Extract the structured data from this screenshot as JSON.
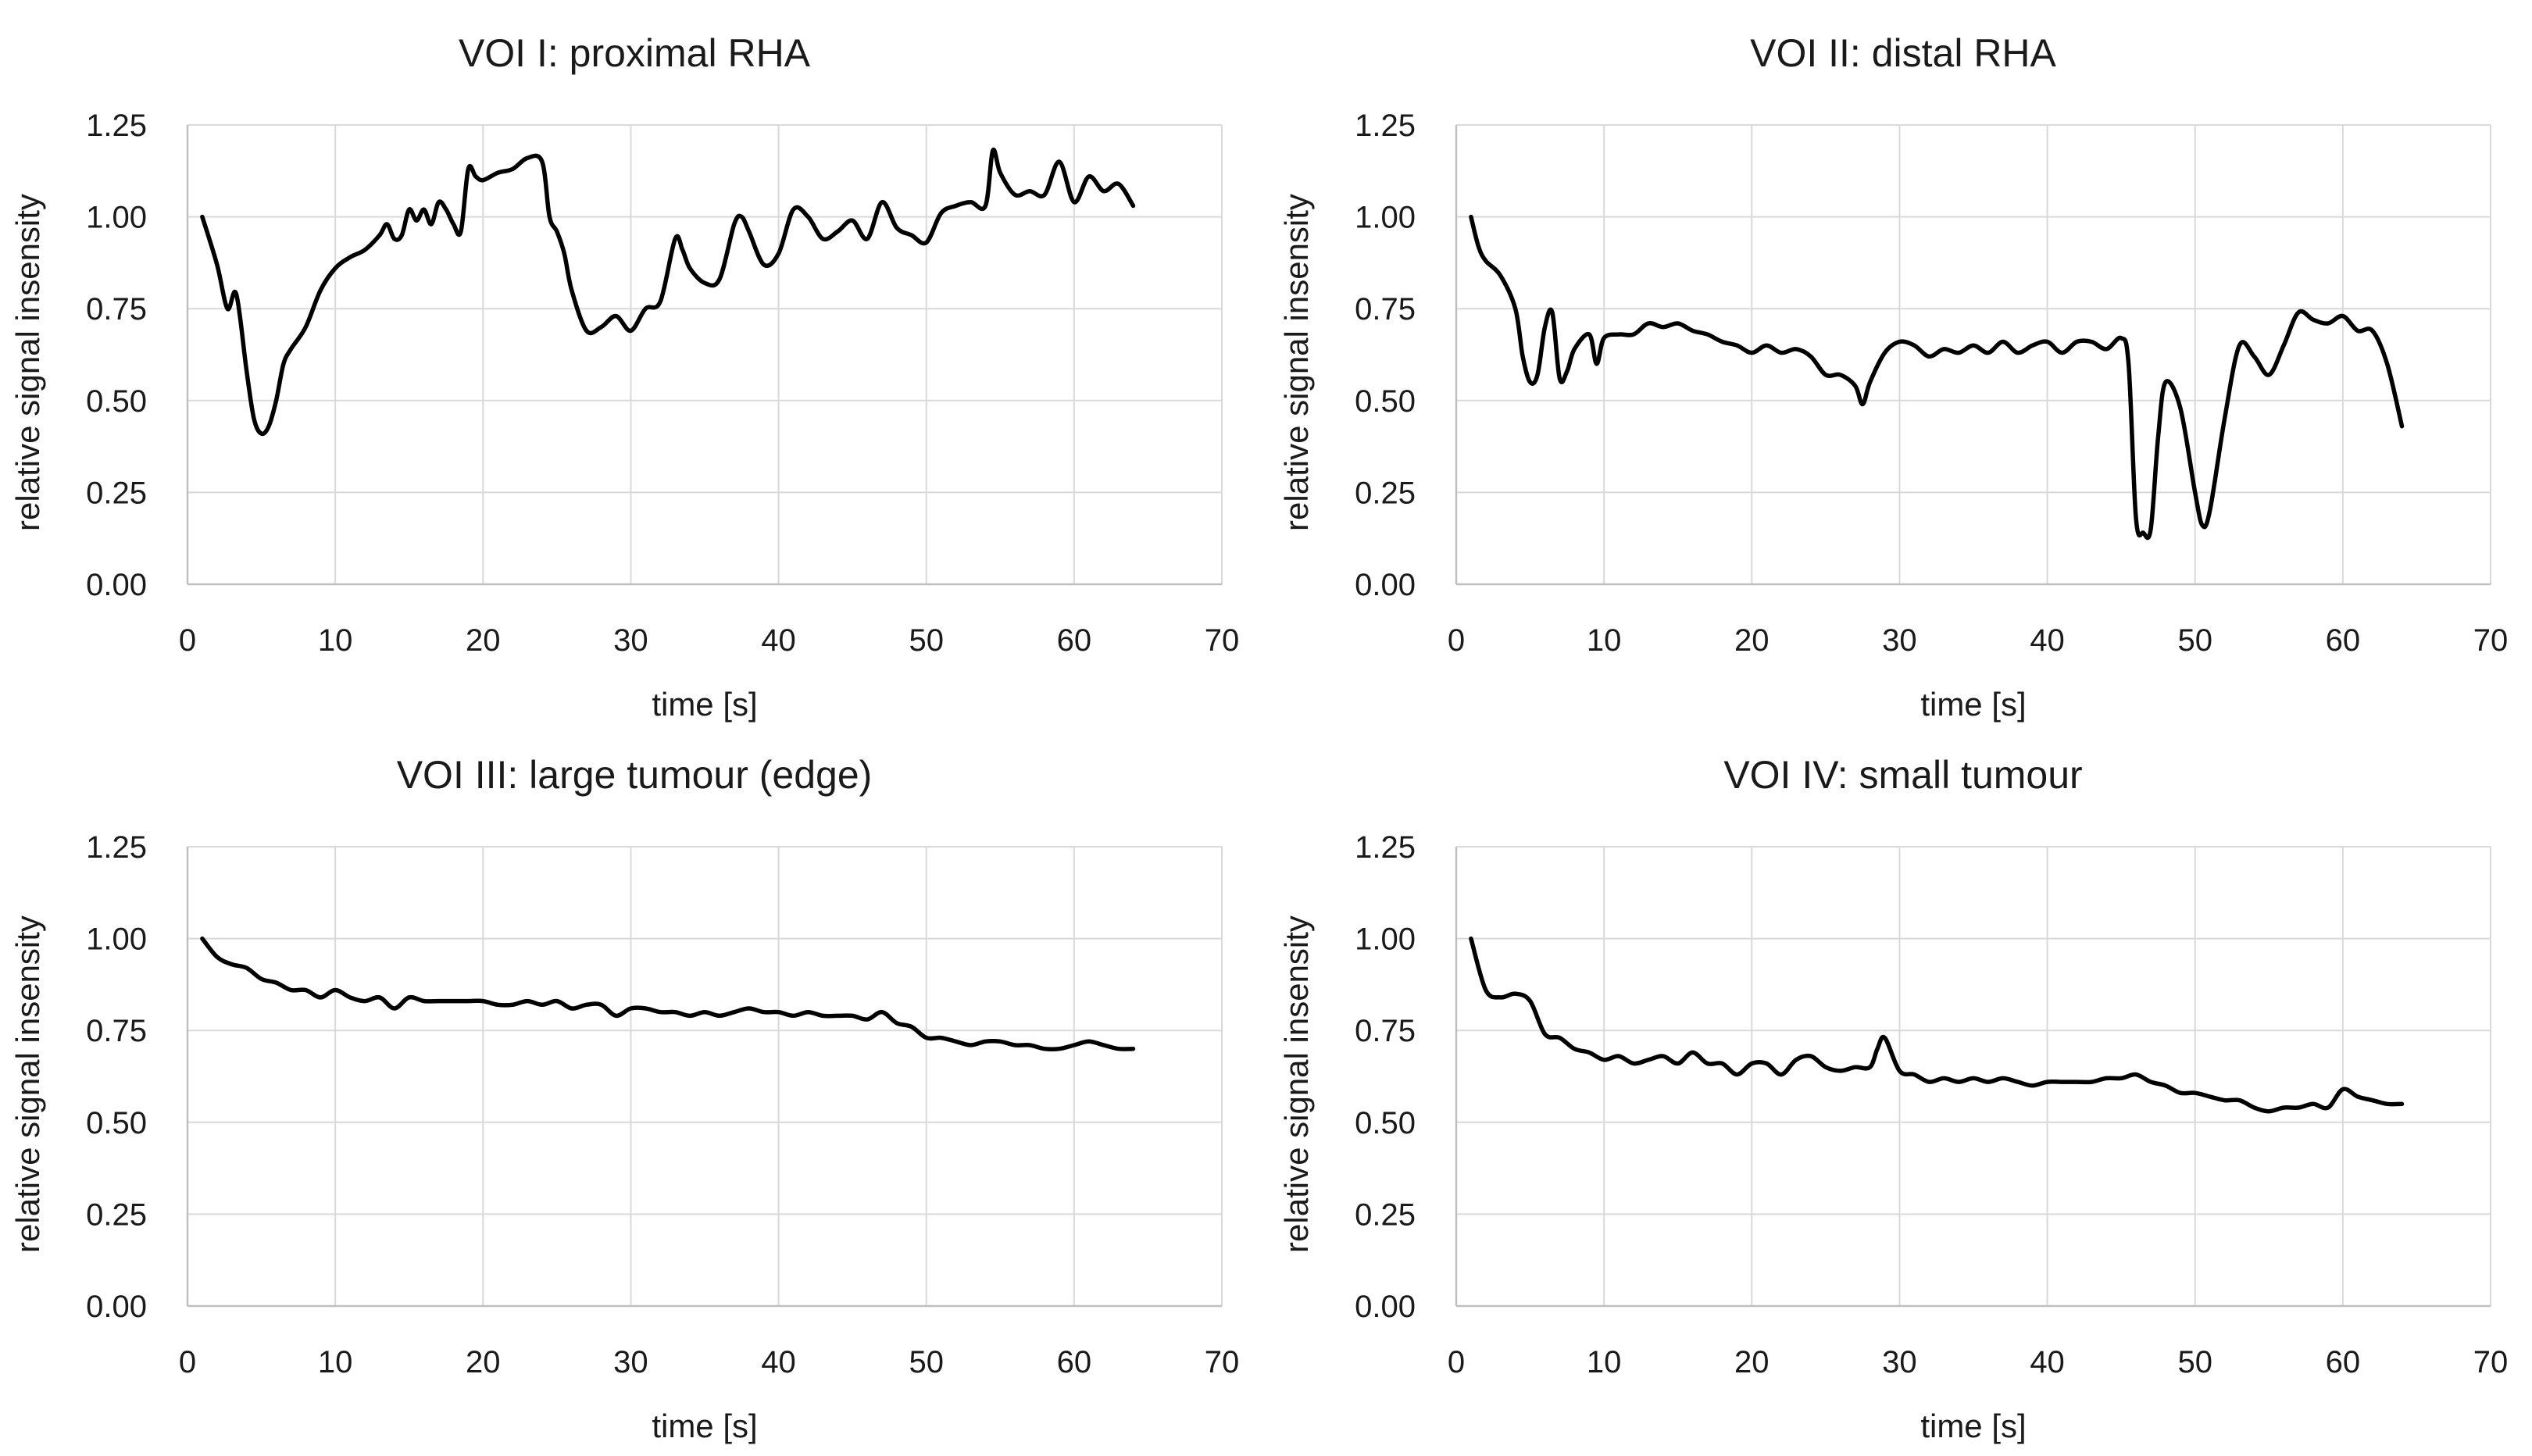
{
  "chart_data": [
    {
      "type": "line",
      "title": "VOI I: proximal RHA",
      "xlabel": "time [s]",
      "ylabel": "relative signal insensity",
      "xlim": [
        0,
        70
      ],
      "ylim": [
        0,
        1.25
      ],
      "xticks": [
        "0",
        "10",
        "20",
        "30",
        "40",
        "50",
        "60",
        "70"
      ],
      "yticks": [
        "0.00",
        "0.25",
        "0.50",
        "0.75",
        "1.00",
        "1.25"
      ],
      "grid": true,
      "series": [
        {
          "color": "#000000",
          "x": [
            1,
            2,
            2.7,
            3.3,
            4,
            4.5,
            5,
            5.5,
            6,
            6.5,
            7,
            8,
            9,
            10,
            11,
            12,
            13,
            13.5,
            14,
            14.5,
            15,
            15.5,
            16,
            16.5,
            17,
            17.5,
            18,
            18.5,
            19,
            19.5,
            20,
            21,
            22,
            23,
            24,
            24.5,
            25,
            25.5,
            26,
            27,
            28,
            29,
            30,
            31,
            32,
            33,
            33.5,
            34,
            35,
            36,
            37,
            37.5,
            38,
            39,
            40,
            41,
            42,
            43,
            44,
            45,
            46,
            47,
            48,
            49,
            50,
            51,
            52,
            53,
            54,
            54.5,
            55,
            56,
            57,
            58,
            59,
            60,
            61,
            62,
            63,
            64
          ],
          "y": [
            1.0,
            0.87,
            0.75,
            0.79,
            0.58,
            0.45,
            0.41,
            0.43,
            0.5,
            0.6,
            0.64,
            0.7,
            0.8,
            0.86,
            0.89,
            0.91,
            0.95,
            0.98,
            0.94,
            0.95,
            1.02,
            0.99,
            1.02,
            0.98,
            1.04,
            1.02,
            0.98,
            0.96,
            1.13,
            1.11,
            1.1,
            1.12,
            1.13,
            1.16,
            1.15,
            1.0,
            0.96,
            0.9,
            0.8,
            0.69,
            0.7,
            0.73,
            0.69,
            0.75,
            0.77,
            0.94,
            0.91,
            0.86,
            0.82,
            0.83,
            0.98,
            1.0,
            0.96,
            0.87,
            0.9,
            1.02,
            1.0,
            0.94,
            0.96,
            0.99,
            0.94,
            1.04,
            0.97,
            0.95,
            0.93,
            1.01,
            1.03,
            1.04,
            1.03,
            1.18,
            1.12,
            1.06,
            1.07,
            1.06,
            1.15,
            1.04,
            1.11,
            1.07,
            1.09,
            1.03
          ]
        }
      ]
    },
    {
      "type": "line",
      "title": "VOI II: distal RHA",
      "xlabel": "time [s]",
      "ylabel": "relative signal insensity",
      "xlim": [
        0,
        70
      ],
      "ylim": [
        0,
        1.25
      ],
      "xticks": [
        "0",
        "10",
        "20",
        "30",
        "40",
        "50",
        "60",
        "70"
      ],
      "yticks": [
        "0.00",
        "0.25",
        "0.50",
        "0.75",
        "1.00",
        "1.25"
      ],
      "grid": true,
      "series": [
        {
          "color": "#000000",
          "x": [
            1,
            1.5,
            2,
            3,
            4,
            4.5,
            5,
            5.5,
            6,
            6.5,
            7,
            7.5,
            8,
            9,
            9.5,
            10,
            11,
            12,
            13,
            14,
            15,
            16,
            17,
            18,
            19,
            20,
            21,
            22,
            23,
            24,
            25,
            26,
            27,
            27.5,
            28,
            29,
            30,
            31,
            32,
            33,
            34,
            35,
            36,
            37,
            38,
            39,
            40,
            41,
            42,
            43,
            44,
            45,
            45.5,
            46,
            46.5,
            47,
            47.5,
            48,
            49,
            50,
            50.5,
            51,
            52,
            53,
            54,
            55,
            56,
            57,
            58,
            59,
            60,
            61,
            62,
            63,
            64
          ],
          "y": [
            1.0,
            0.92,
            0.88,
            0.84,
            0.75,
            0.62,
            0.55,
            0.57,
            0.7,
            0.74,
            0.56,
            0.58,
            0.64,
            0.68,
            0.6,
            0.67,
            0.68,
            0.68,
            0.71,
            0.7,
            0.71,
            0.69,
            0.68,
            0.66,
            0.65,
            0.63,
            0.65,
            0.63,
            0.64,
            0.62,
            0.57,
            0.57,
            0.54,
            0.49,
            0.55,
            0.63,
            0.66,
            0.65,
            0.62,
            0.64,
            0.63,
            0.65,
            0.63,
            0.66,
            0.63,
            0.65,
            0.66,
            0.63,
            0.66,
            0.66,
            0.64,
            0.67,
            0.6,
            0.18,
            0.14,
            0.15,
            0.4,
            0.55,
            0.48,
            0.25,
            0.16,
            0.2,
            0.45,
            0.65,
            0.62,
            0.57,
            0.65,
            0.74,
            0.72,
            0.71,
            0.73,
            0.69,
            0.69,
            0.6,
            0.43
          ]
        }
      ]
    },
    {
      "type": "line",
      "title": "VOI III: large tumour (edge)",
      "xlabel": "time [s]",
      "ylabel": "relative signal insensity",
      "xlim": [
        0,
        70
      ],
      "ylim": [
        0,
        1.25
      ],
      "xticks": [
        "0",
        "10",
        "20",
        "30",
        "40",
        "50",
        "60",
        "70"
      ],
      "yticks": [
        "0.00",
        "0.25",
        "0.50",
        "0.75",
        "1.00",
        "1.25"
      ],
      "grid": true,
      "series": [
        {
          "color": "#000000",
          "x": [
            1,
            2,
            3,
            4,
            5,
            6,
            7,
            8,
            9,
            10,
            11,
            12,
            13,
            14,
            15,
            16,
            17,
            18,
            19,
            20,
            21,
            22,
            23,
            24,
            25,
            26,
            27,
            28,
            29,
            30,
            31,
            32,
            33,
            34,
            35,
            36,
            37,
            38,
            39,
            40,
            41,
            42,
            43,
            44,
            45,
            46,
            47,
            48,
            49,
            50,
            51,
            52,
            53,
            54,
            55,
            56,
            57,
            58,
            59,
            60,
            61,
            62,
            63,
            64
          ],
          "y": [
            1.0,
            0.95,
            0.93,
            0.92,
            0.89,
            0.88,
            0.86,
            0.86,
            0.84,
            0.86,
            0.84,
            0.83,
            0.84,
            0.81,
            0.84,
            0.83,
            0.83,
            0.83,
            0.83,
            0.83,
            0.82,
            0.82,
            0.83,
            0.82,
            0.83,
            0.81,
            0.82,
            0.82,
            0.79,
            0.81,
            0.81,
            0.8,
            0.8,
            0.79,
            0.8,
            0.79,
            0.8,
            0.81,
            0.8,
            0.8,
            0.79,
            0.8,
            0.79,
            0.79,
            0.79,
            0.78,
            0.8,
            0.77,
            0.76,
            0.73,
            0.73,
            0.72,
            0.71,
            0.72,
            0.72,
            0.71,
            0.71,
            0.7,
            0.7,
            0.71,
            0.72,
            0.71,
            0.7,
            0.7
          ]
        }
      ]
    },
    {
      "type": "line",
      "title": "VOI IV: small tumour",
      "xlabel": "time [s]",
      "ylabel": "relative signal insensity",
      "xlim": [
        0,
        70
      ],
      "ylim": [
        0,
        1.25
      ],
      "xticks": [
        "0",
        "10",
        "20",
        "30",
        "40",
        "50",
        "60",
        "70"
      ],
      "yticks": [
        "0.00",
        "0.25",
        "0.50",
        "0.75",
        "1.00",
        "1.25"
      ],
      "grid": true,
      "series": [
        {
          "color": "#000000",
          "x": [
            1,
            2,
            3,
            4,
            5,
            6,
            7,
            8,
            9,
            10,
            11,
            12,
            13,
            14,
            15,
            16,
            17,
            18,
            19,
            20,
            21,
            22,
            23,
            24,
            25,
            26,
            27,
            28,
            28.5,
            29,
            30,
            31,
            32,
            33,
            34,
            35,
            36,
            37,
            38,
            39,
            40,
            41,
            42,
            43,
            44,
            45,
            46,
            47,
            48,
            49,
            50,
            51,
            52,
            53,
            54,
            55,
            56,
            57,
            58,
            59,
            60,
            61,
            62,
            63,
            64
          ],
          "y": [
            1.0,
            0.86,
            0.84,
            0.85,
            0.83,
            0.74,
            0.73,
            0.7,
            0.69,
            0.67,
            0.68,
            0.66,
            0.67,
            0.68,
            0.66,
            0.69,
            0.66,
            0.66,
            0.63,
            0.66,
            0.66,
            0.63,
            0.67,
            0.68,
            0.65,
            0.64,
            0.65,
            0.65,
            0.7,
            0.73,
            0.64,
            0.63,
            0.61,
            0.62,
            0.61,
            0.62,
            0.61,
            0.62,
            0.61,
            0.6,
            0.61,
            0.61,
            0.61,
            0.61,
            0.62,
            0.62,
            0.63,
            0.61,
            0.6,
            0.58,
            0.58,
            0.57,
            0.56,
            0.56,
            0.54,
            0.53,
            0.54,
            0.54,
            0.55,
            0.54,
            0.59,
            0.57,
            0.56,
            0.55,
            0.55
          ]
        }
      ]
    }
  ]
}
